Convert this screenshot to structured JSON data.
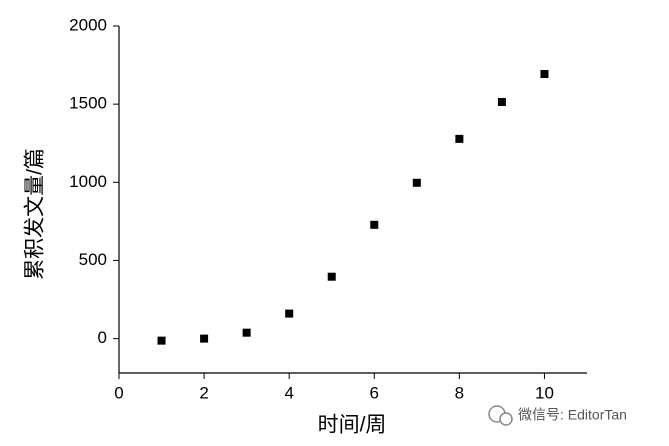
{
  "chart_data": {
    "type": "scatter",
    "x_label": "时间/周",
    "y_label": "累积发文量/篇",
    "watermark": "微信号: EditorTan",
    "x": [
      1,
      2,
      3,
      4,
      5,
      6,
      7,
      8,
      9,
      10
    ],
    "values": [
      -13,
      0,
      38,
      160,
      396,
      728,
      997,
      1278,
      1514,
      1693
    ],
    "color": "#000000",
    "xlim": [
      0,
      11
    ],
    "xticks": [
      0,
      2,
      4,
      6,
      8,
      10
    ],
    "ylim": [
      -220,
      2000
    ],
    "yticks": [
      0,
      500,
      1000,
      1500,
      2000
    ]
  }
}
